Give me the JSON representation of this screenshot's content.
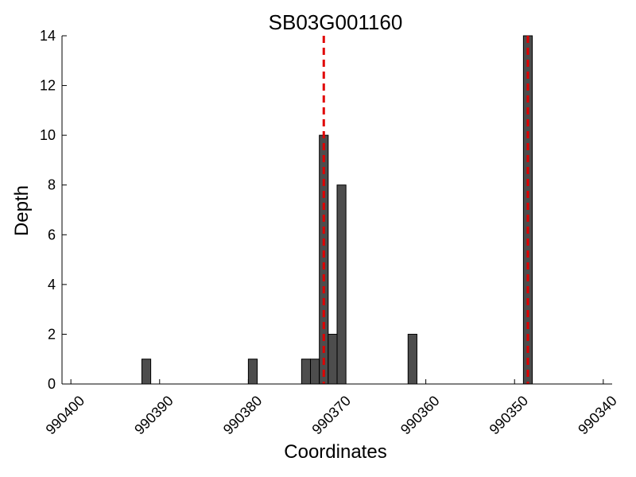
{
  "chart_data": {
    "type": "bar",
    "title": "SB03G001160",
    "xlabel": "Coordinates",
    "ylabel": "Depth",
    "x_reversed": true,
    "xlim": [
      990401,
      990339
    ],
    "ylim": [
      0,
      14
    ],
    "yticks": [
      0,
      2,
      4,
      6,
      8,
      10,
      12,
      14
    ],
    "ytick_labels": [
      "0",
      "2",
      "4",
      "6",
      "8",
      "10",
      "12",
      "14"
    ],
    "xticks": [
      990400,
      990390,
      990380,
      990370,
      990360,
      990350,
      990340
    ],
    "xtick_labels": [
      "990400",
      "990390",
      "990380",
      "990370",
      "990360",
      "990350",
      "990340"
    ],
    "bar_color": "#4d4d4d",
    "bar_edge_color": "#000000",
    "grid": false,
    "bars": [
      {
        "x": 990392,
        "value": 1
      },
      {
        "x": 990380,
        "value": 1
      },
      {
        "x": 990374,
        "value": 1
      },
      {
        "x": 990373,
        "value": 1
      },
      {
        "x": 990372,
        "value": 10
      },
      {
        "x": 990371,
        "value": 2
      },
      {
        "x": 990370,
        "value": 8
      },
      {
        "x": 990362,
        "value": 2
      },
      {
        "x": 990349,
        "value": 14
      }
    ],
    "reference_lines": [
      {
        "x": 990371.5,
        "color": "#e00000",
        "style": "dashed"
      },
      {
        "x": 990348.5,
        "color": "#e00000",
        "style": "dashed"
      }
    ]
  }
}
